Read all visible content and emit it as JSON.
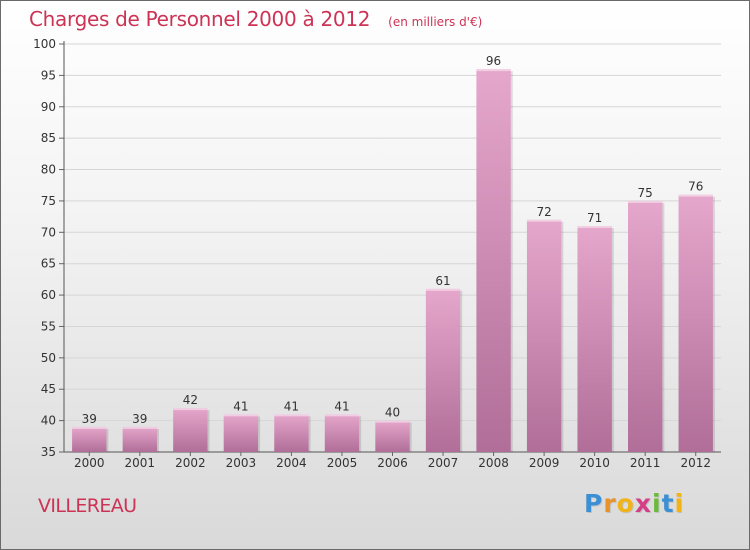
{
  "chart_data": {
    "type": "bar",
    "title": "Charges de Personnel 2000 à 2012",
    "subtitle": "(en milliers d'€)",
    "categories": [
      "2000",
      "2001",
      "2002",
      "2003",
      "2004",
      "2005",
      "2006",
      "2007",
      "2008",
      "2009",
      "2010",
      "2011",
      "2012"
    ],
    "values": [
      39,
      39,
      42,
      41,
      41,
      41,
      40,
      61,
      96,
      72,
      71,
      75,
      76
    ],
    "ylim": [
      35,
      100
    ],
    "yticks": [
      35,
      40,
      45,
      50,
      55,
      60,
      65,
      70,
      75,
      80,
      85,
      90,
      95,
      100
    ],
    "grid": true,
    "data_labels": true,
    "bar_color_top": "#e6a7cc",
    "bar_color_bottom": "#b06e98"
  },
  "place": "VILLEREAU",
  "brand": {
    "letters": [
      "P",
      "r",
      "o",
      "x",
      "i",
      "t",
      "i"
    ],
    "colors": [
      "#3b8fd4",
      "#e8922a",
      "#f2b318",
      "#d43f87",
      "#6cba3b",
      "#3b8fd4",
      "#f2b318"
    ]
  }
}
